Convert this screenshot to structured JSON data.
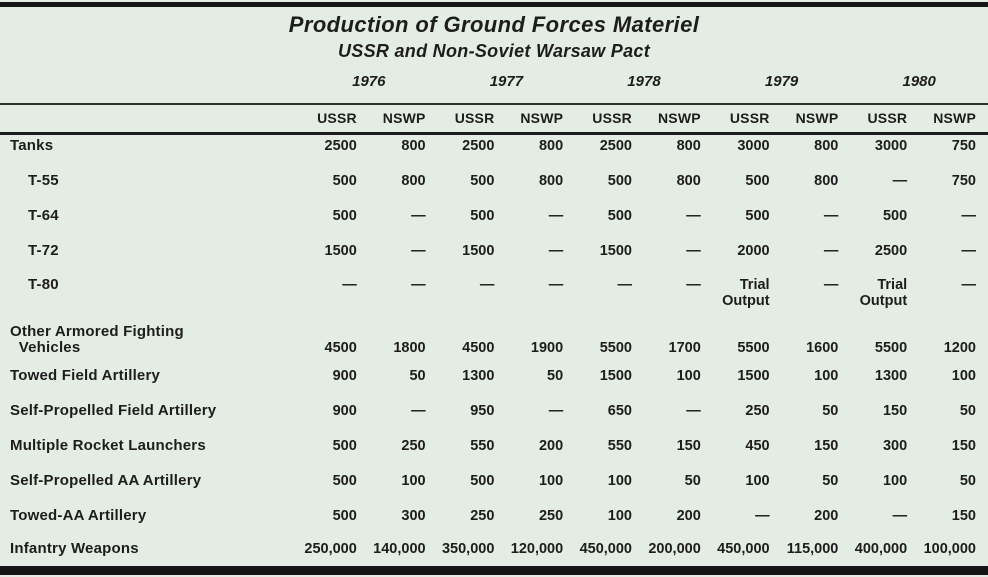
{
  "table": {
    "title": "Production of Ground Forces Materiel",
    "subtitle": "USSR and Non-Soviet Warsaw Pact",
    "years": [
      "1976",
      "1977",
      "1978",
      "1979",
      "1980"
    ],
    "sub_headers": [
      "USSR",
      "NSWP"
    ],
    "rows": [
      {
        "label": "Tanks",
        "indent": false,
        "values": [
          "2500",
          "800",
          "2500",
          "800",
          "2500",
          "800",
          "3000",
          "800",
          "3000",
          "750"
        ]
      },
      {
        "label": "T-55",
        "indent": true,
        "values": [
          "500",
          "800",
          "500",
          "800",
          "500",
          "800",
          "500",
          "800",
          "—",
          "750"
        ]
      },
      {
        "label": "T-64",
        "indent": true,
        "values": [
          "500",
          "—",
          "500",
          "—",
          "500",
          "—",
          "500",
          "—",
          "500",
          "—"
        ]
      },
      {
        "label": "T-72",
        "indent": true,
        "values": [
          "1500",
          "—",
          "1500",
          "—",
          "1500",
          "—",
          "2000",
          "—",
          "2500",
          "—"
        ]
      },
      {
        "label": "T-80",
        "indent": true,
        "values": [
          "—",
          "—",
          "—",
          "—",
          "—",
          "—",
          "Trial Output",
          "—",
          "Trial Output",
          "—"
        ]
      },
      {
        "label": "Other Armored Fighting\n  Vehicles",
        "indent": false,
        "values": [
          "4500",
          "1800",
          "4500",
          "1900",
          "5500",
          "1700",
          "5500",
          "1600",
          "5500",
          "1200"
        ]
      },
      {
        "label": "Towed Field Artillery",
        "indent": false,
        "values": [
          "900",
          "50",
          "1300",
          "50",
          "1500",
          "100",
          "1500",
          "100",
          "1300",
          "100"
        ]
      },
      {
        "label": "Self-Propelled Field Artillery",
        "indent": false,
        "values": [
          "900",
          "—",
          "950",
          "—",
          "650",
          "—",
          "250",
          "50",
          "150",
          "50"
        ]
      },
      {
        "label": "Multiple Rocket Launchers",
        "indent": false,
        "values": [
          "500",
          "250",
          "550",
          "200",
          "550",
          "150",
          "450",
          "150",
          "300",
          "150"
        ]
      },
      {
        "label": "Self-Propelled AA Artillery",
        "indent": false,
        "values": [
          "500",
          "100",
          "500",
          "100",
          "100",
          "50",
          "100",
          "50",
          "100",
          "50"
        ]
      },
      {
        "label": "Towed-AA Artillery",
        "indent": false,
        "values": [
          "500",
          "300",
          "250",
          "250",
          "100",
          "200",
          "—",
          "200",
          "—",
          "150"
        ]
      },
      {
        "label": "Infantry Weapons",
        "indent": false,
        "values": [
          "250,000",
          "140,000",
          "350,000",
          "120,000",
          "450,000",
          "200,000",
          "450,000",
          "115,000",
          "400,000",
          "100,000"
        ]
      }
    ],
    "colors": {
      "background": "#e4ede3",
      "text": "#1d1d1d",
      "rule": "#1c1c1c"
    }
  }
}
